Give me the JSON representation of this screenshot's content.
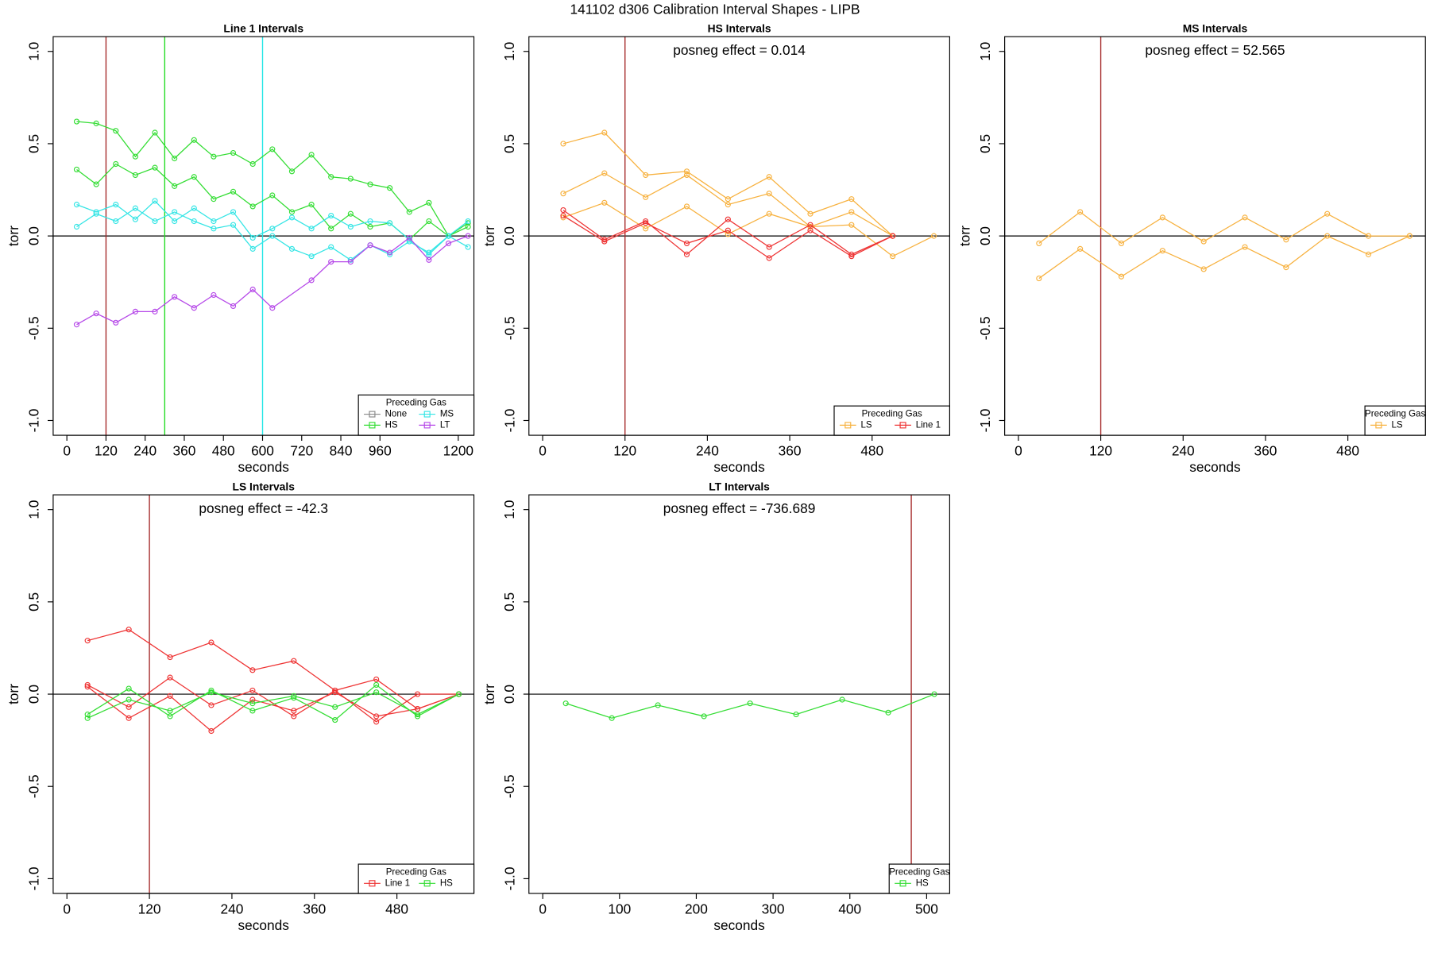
{
  "title": "141102   d306   Calibration Interval Shapes - LIPB",
  "chart_data": [
    {
      "type": "line",
      "title": "Line 1 Intervals",
      "xlabel": "seconds",
      "ylabel": "torr",
      "xlim": [
        -42,
        1248
      ],
      "ylim": [
        -1.08,
        1.08
      ],
      "xticks": [
        0,
        120,
        240,
        360,
        480,
        600,
        720,
        840,
        960,
        1200
      ],
      "yticks": [
        {
          "value": -1,
          "label": "-1.0"
        },
        -0.5,
        {
          "value": 0,
          "label": "0.0"
        },
        0.5,
        {
          "value": 1,
          "label": "1.0"
        }
      ],
      "hline": 0,
      "vlines": [
        {
          "value": 120,
          "color": "#a52a2a"
        },
        {
          "value": 300,
          "color": "#22dd22"
        },
        {
          "value": 600,
          "color": "#22e5e5"
        }
      ],
      "legend": "bottomright",
      "legend_title": "Preceding Gas",
      "series": [
        {
          "name": "None",
          "color": "#888888",
          "x": [],
          "values": []
        },
        {
          "name": "HS",
          "color": "#33dd33",
          "x": [
            30,
            90,
            150,
            210,
            270,
            330,
            390,
            450,
            510,
            570,
            630,
            690,
            750,
            810,
            870,
            930,
            990,
            1050,
            1110,
            1170,
            1230
          ],
          "values": [
            0.62,
            0.61,
            0.57,
            0.43,
            0.56,
            0.42,
            0.52,
            0.43,
            0.45,
            0.39,
            0.47,
            0.35,
            0.44,
            0.32,
            0.31,
            0.28,
            0.26,
            0.13,
            0.18,
            0,
            0.07
          ]
        },
        {
          "name": "HS",
          "color": "#33dd33",
          "x": [
            30,
            90,
            150,
            210,
            270,
            330,
            390,
            450,
            510,
            570,
            630,
            690,
            750,
            810,
            870,
            930,
            990,
            1050,
            1110,
            1170,
            1230
          ],
          "values": [
            0.36,
            0.28,
            0.39,
            0.33,
            0.37,
            0.27,
            0.32,
            0.2,
            0.24,
            0.16,
            0.22,
            0.13,
            0.17,
            0.04,
            0.12,
            0.05,
            0.07,
            -0.02,
            0.08,
            0,
            0.05
          ]
        },
        {
          "name": "MS",
          "color": "#33e5e5",
          "x": [
            30,
            90,
            150,
            210,
            270,
            330,
            390,
            450,
            510,
            570,
            630,
            690,
            750,
            810,
            870,
            930,
            990,
            1050,
            1110,
            1170,
            1230
          ],
          "values": [
            0.17,
            0.13,
            0.17,
            0.09,
            0.19,
            0.08,
            0.15,
            0.08,
            0.13,
            -0.01,
            0.04,
            0.1,
            0.04,
            0.11,
            0.05,
            0.08,
            0.07,
            -0.02,
            -0.1,
            0,
            0.08
          ]
        },
        {
          "name": "MS",
          "color": "#33e5e5",
          "x": [
            30,
            90,
            150,
            210,
            270,
            330,
            390,
            450,
            510,
            570,
            630,
            690,
            750,
            810,
            870,
            930,
            990,
            1050,
            1110,
            1170,
            1230
          ],
          "values": [
            0.05,
            0.12,
            0.08,
            0.15,
            0.08,
            0.13,
            0.08,
            0.04,
            0.06,
            -0.07,
            0,
            -0.07,
            -0.11,
            -0.06,
            -0.13,
            -0.05,
            -0.1,
            -0.03,
            -0.09,
            0,
            -0.06
          ]
        },
        {
          "name": "LT",
          "color": "#b547e8",
          "x": [
            30,
            90,
            150,
            210,
            270,
            330,
            390,
            450,
            510,
            570,
            630,
            750,
            810,
            870,
            930,
            990,
            1050,
            1110,
            1170,
            1230
          ],
          "values": [
            -0.48,
            -0.42,
            -0.47,
            -0.41,
            -0.41,
            -0.33,
            -0.39,
            -0.32,
            -0.38,
            -0.29,
            -0.39,
            -0.24,
            -0.14,
            -0.14,
            -0.05,
            -0.09,
            -0.01,
            -0.13,
            -0.04,
            0
          ]
        }
      ]
    },
    {
      "type": "line",
      "title": "HS Intervals",
      "annotation": "posneg effect = 0.014",
      "xlabel": "seconds",
      "ylabel": "torr",
      "xlim": [
        -20,
        593
      ],
      "ylim": [
        -1.08,
        1.08
      ],
      "xticks": [
        0,
        120,
        240,
        360,
        480
      ],
      "yticks": [
        {
          "value": -1,
          "label": "-1.0"
        },
        -0.5,
        {
          "value": 0,
          "label": "0.0"
        },
        0.5,
        {
          "value": 1,
          "label": "1.0"
        }
      ],
      "hline": 0,
      "vlines": [
        {
          "value": 120,
          "color": "#a52a2a"
        }
      ],
      "legend": "bottomright",
      "legend_title": "Preceding Gas",
      "series": [
        {
          "name": "LS",
          "color": "#f7b13e",
          "x": [
            30,
            90,
            150,
            210,
            270,
            330,
            390,
            450,
            510
          ],
          "values": [
            0.5,
            0.56,
            0.33,
            0.35,
            0.2,
            0.32,
            0.12,
            0.2,
            0
          ]
        },
        {
          "name": "LS",
          "color": "#f7b13e",
          "x": [
            30,
            90,
            150,
            210,
            270,
            330,
            390,
            450,
            510
          ],
          "values": [
            0.23,
            0.34,
            0.21,
            0.33,
            0.17,
            0.23,
            0.05,
            0.13,
            0
          ]
        },
        {
          "name": "LS",
          "color": "#f7b13e",
          "x": [
            30,
            90,
            150,
            210,
            270,
            330,
            390,
            450,
            510,
            570
          ],
          "values": [
            0.1,
            0.18,
            0.04,
            0.16,
            0.01,
            0.12,
            0.05,
            0.06,
            -0.11,
            0
          ]
        },
        {
          "name": "Line 1",
          "color": "#ee3333",
          "x": [
            30,
            90,
            150,
            210,
            270,
            330,
            390,
            450,
            510
          ],
          "values": [
            0.14,
            -0.02,
            0.08,
            -0.1,
            0.09,
            -0.06,
            0.06,
            -0.1,
            0
          ]
        },
        {
          "name": "Line 1",
          "color": "#ee3333",
          "x": [
            30,
            90,
            150,
            210,
            270,
            330,
            390,
            450,
            510
          ],
          "values": [
            0.11,
            -0.03,
            0.07,
            -0.04,
            0.03,
            -0.12,
            0.03,
            -0.11,
            0
          ]
        }
      ]
    },
    {
      "type": "line",
      "title": "MS Intervals",
      "annotation": "posneg effect = 52.565",
      "xlabel": "seconds",
      "ylabel": "torr",
      "xlim": [
        -20,
        593
      ],
      "ylim": [
        -1.08,
        1.08
      ],
      "xticks": [
        0,
        120,
        240,
        360,
        480
      ],
      "yticks": [
        {
          "value": -1,
          "label": "-1.0"
        },
        -0.5,
        {
          "value": 0,
          "label": "0.0"
        },
        0.5,
        {
          "value": 1,
          "label": "1.0"
        }
      ],
      "hline": 0,
      "vlines": [
        {
          "value": 120,
          "color": "#a52a2a"
        }
      ],
      "legend": "bottomright",
      "legend_title": "Preceding Gas",
      "series": [
        {
          "name": "LS",
          "color": "#f7b13e",
          "x": [
            30,
            90,
            150,
            210,
            270,
            330,
            390,
            450,
            510,
            570
          ],
          "values": [
            -0.04,
            0.13,
            -0.04,
            0.1,
            -0.03,
            0.1,
            -0.02,
            0.12,
            0,
            0
          ]
        },
        {
          "name": "LS",
          "color": "#f7b13e",
          "x": [
            30,
            90,
            150,
            210,
            270,
            330,
            390,
            450,
            510,
            570
          ],
          "values": [
            -0.23,
            -0.07,
            -0.22,
            -0.08,
            -0.18,
            -0.06,
            -0.17,
            0,
            -0.1,
            0
          ]
        }
      ]
    },
    {
      "type": "line",
      "title": "LS Intervals",
      "annotation": "posneg effect = -42.3",
      "xlabel": "seconds",
      "ylabel": "torr",
      "xlim": [
        -20,
        592
      ],
      "ylim": [
        -1.08,
        1.08
      ],
      "xticks": [
        0,
        120,
        240,
        360,
        480
      ],
      "yticks": [
        {
          "value": -1,
          "label": "-1.0"
        },
        -0.5,
        {
          "value": 0,
          "label": "0.0"
        },
        0.5,
        {
          "value": 1,
          "label": "1.0"
        }
      ],
      "hline": 0,
      "vlines": [
        {
          "value": 120,
          "color": "#a52a2a"
        }
      ],
      "legend": "bottomright",
      "legend_title": "Preceding Gas",
      "series": [
        {
          "name": "Line 1",
          "color": "#ee3333",
          "x": [
            30,
            90,
            150,
            210,
            270,
            330,
            390,
            450,
            510,
            570
          ],
          "values": [
            0.29,
            0.35,
            0.2,
            0.28,
            0.13,
            0.18,
            0.02,
            0.08,
            -0.08,
            0
          ]
        },
        {
          "name": "Line 1",
          "color": "#ee3333",
          "x": [
            30,
            90,
            150,
            210,
            270,
            330,
            390,
            450,
            510,
            570
          ],
          "values": [
            0.05,
            -0.07,
            0.09,
            -0.06,
            0.02,
            -0.12,
            0.02,
            -0.15,
            0,
            0
          ]
        },
        {
          "name": "Line 1",
          "color": "#ee3333",
          "x": [
            30,
            90,
            150,
            210,
            270,
            330,
            390,
            450,
            510,
            570
          ],
          "values": [
            0.04,
            -0.13,
            -0.01,
            -0.2,
            -0.03,
            -0.09,
            0.01,
            -0.12,
            -0.08,
            0
          ]
        },
        {
          "name": "HS",
          "color": "#33dd33",
          "x": [
            30,
            90,
            150,
            210,
            270,
            330,
            390,
            450,
            510,
            570
          ],
          "values": [
            -0.11,
            0.03,
            -0.12,
            0.02,
            -0.09,
            -0.02,
            -0.14,
            0.05,
            -0.12,
            0
          ]
        },
        {
          "name": "HS",
          "color": "#33dd33",
          "x": [
            30,
            90,
            150,
            210,
            270,
            330,
            390,
            450,
            510,
            570
          ],
          "values": [
            -0.13,
            -0.03,
            -0.09,
            0.01,
            -0.05,
            -0.01,
            -0.07,
            0.01,
            -0.11,
            0
          ]
        }
      ]
    },
    {
      "type": "line",
      "title": "LT Intervals",
      "annotation": "posneg effect = -736.689",
      "xlabel": "seconds",
      "ylabel": "torr",
      "xlim": [
        -18,
        530
      ],
      "ylim": [
        -1.08,
        1.08
      ],
      "xticks": [
        0,
        100,
        200,
        300,
        400,
        500
      ],
      "yticks": [
        {
          "value": -1,
          "label": "-1.0"
        },
        -0.5,
        {
          "value": 0,
          "label": "0.0"
        },
        0.5,
        {
          "value": 1,
          "label": "1.0"
        }
      ],
      "hline": 0,
      "vlines": [
        {
          "value": 480,
          "color": "#a52a2a"
        }
      ],
      "legend": "bottomright",
      "legend_title": "Preceding Gas",
      "series": [
        {
          "name": "HS",
          "color": "#33dd33",
          "x": [
            30,
            90,
            150,
            210,
            270,
            330,
            390,
            450,
            510
          ],
          "values": [
            -0.05,
            -0.13,
            -0.06,
            -0.12,
            -0.05,
            -0.11,
            -0.03,
            -0.1,
            0
          ]
        }
      ]
    }
  ]
}
